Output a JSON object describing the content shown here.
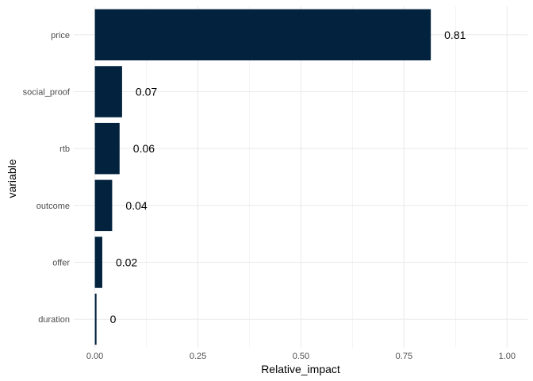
{
  "chart_data": {
    "type": "bar",
    "orientation": "horizontal",
    "title": "",
    "xlabel": "Relative_impact",
    "ylabel": "variable",
    "categories": [
      "price",
      "social_proof",
      "rtb",
      "outcome",
      "offer",
      "duration"
    ],
    "values": [
      0.815,
      0.066,
      0.06,
      0.042,
      0.018,
      0.004
    ],
    "value_labels": [
      "0.81",
      "0.07",
      "0.06",
      "0.04",
      "0.02",
      "0"
    ],
    "xlim": [
      0,
      1
    ],
    "x_ticks": [
      0,
      0.25,
      0.5,
      0.75,
      1
    ],
    "x_tick_labels": [
      "0.00",
      "0.25",
      "0.50",
      "0.75",
      "1.00"
    ],
    "grid": true,
    "legend": "none",
    "bar_color": "#03223d"
  }
}
